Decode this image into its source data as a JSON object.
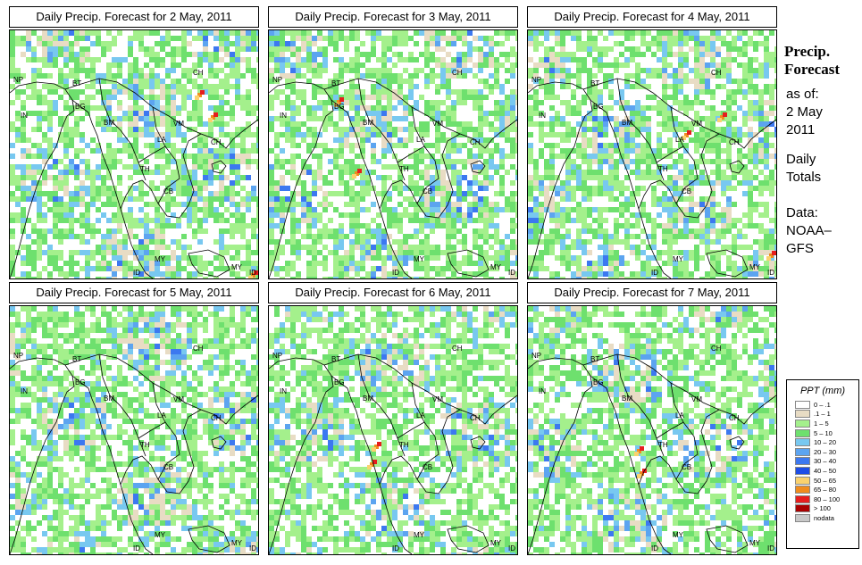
{
  "panels": [
    {
      "title": "Daily Precip. Forecast for  2 May, 2011",
      "seed": 11,
      "heavy": [
        [
          210,
          70
        ],
        [
          225,
          95
        ],
        [
          270,
          272
        ]
      ]
    },
    {
      "title": "Daily Precip. Forecast for  3 May, 2011",
      "seed": 23,
      "heavy": [
        [
          76,
          78
        ],
        [
          96,
          158
        ]
      ]
    },
    {
      "title": "Daily Precip. Forecast for  4 May, 2011",
      "seed": 37,
      "heavy": [
        [
          175,
          115
        ],
        [
          215,
          95
        ],
        [
          270,
          250
        ]
      ]
    },
    {
      "title": "Daily Precip. Forecast for  5 May, 2011",
      "seed": 41,
      "heavy": []
    },
    {
      "title": "Daily Precip. Forecast for  6 May, 2011",
      "seed": 53,
      "heavy": [
        [
          118,
          155
        ],
        [
          113,
          175
        ]
      ]
    },
    {
      "title": "Daily Precip. Forecast for  7 May, 2011",
      "seed": 67,
      "heavy": [
        [
          122,
          160
        ],
        [
          125,
          185
        ]
      ]
    }
  ],
  "country_labels": [
    {
      "code": "CH",
      "x": 205,
      "y": 50
    },
    {
      "code": "NP",
      "x": 4,
      "y": 58
    },
    {
      "code": "BT",
      "x": 70,
      "y": 62
    },
    {
      "code": "IN",
      "x": 12,
      "y": 98
    },
    {
      "code": "BG",
      "x": 73,
      "y": 88
    },
    {
      "code": "BM",
      "x": 105,
      "y": 106
    },
    {
      "code": "VM",
      "x": 183,
      "y": 107
    },
    {
      "code": "LA",
      "x": 165,
      "y": 125
    },
    {
      "code": "CH",
      "x": 225,
      "y": 128
    },
    {
      "code": "TH",
      "x": 146,
      "y": 158
    },
    {
      "code": "CB",
      "x": 172,
      "y": 183
    },
    {
      "code": "MY",
      "x": 162,
      "y": 259
    },
    {
      "code": "MY",
      "x": 248,
      "y": 268
    },
    {
      "code": "ID",
      "x": 138,
      "y": 274
    },
    {
      "code": "ID",
      "x": 268,
      "y": 274
    }
  ],
  "sidebar": {
    "title_line1": "Precip.",
    "title_line2": "Forecast",
    "as_of_label": "as of:",
    "as_of_date_line1": "2 May",
    "as_of_date_line2": "2011",
    "totals_line1": "Daily",
    "totals_line2": "Totals",
    "data_line1": "Data:",
    "data_line2": "NOAA–",
    "data_line3": "GFS"
  },
  "legend": {
    "title": "PPT (mm)",
    "items": [
      {
        "label": "0 – .1",
        "color": "#ffffff"
      },
      {
        "label": ".1 – 1",
        "color": "#e8dcc4"
      },
      {
        "label": "1 – 5",
        "color": "#a4f08c"
      },
      {
        "label": "5 – 10",
        "color": "#6ee06e"
      },
      {
        "label": "10 – 20",
        "color": "#78c8f0"
      },
      {
        "label": "20 – 30",
        "color": "#5ca4f0"
      },
      {
        "label": "30 – 40",
        "color": "#3c78f0"
      },
      {
        "label": "40 – 50",
        "color": "#1e4ee6"
      },
      {
        "label": "50 – 65",
        "color": "#fad26e"
      },
      {
        "label": "65 – 80",
        "color": "#f08c1e"
      },
      {
        "label": "80 – 100",
        "color": "#e61e1e"
      },
      {
        "label": "> 100",
        "color": "#aa0000"
      },
      {
        "label": "nodata",
        "color": "#c8c8c8"
      }
    ]
  }
}
